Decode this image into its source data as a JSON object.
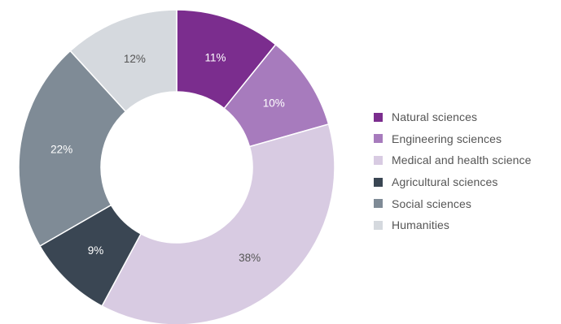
{
  "chart_data": {
    "type": "pie",
    "variant": "donut",
    "title": "",
    "legend_position": "right",
    "series": [
      {
        "name": "Natural sciences",
        "value": 11,
        "label": "11%",
        "color": "#7b2d8e",
        "label_color": "#ffffff"
      },
      {
        "name": "Engineering sciences",
        "value": 10,
        "label": "10%",
        "color": "#a77bbd",
        "label_color": "#ffffff"
      },
      {
        "name": "Medical and health science",
        "value": 38,
        "label": "38%",
        "color": "#d8cbe2",
        "label_color": "#555555"
      },
      {
        "name": "Agricultural sciences",
        "value": 9,
        "label": "9%",
        "color": "#3a4653",
        "label_color": "#ffffff"
      },
      {
        "name": "Social sciences",
        "value": 22,
        "label": "22%",
        "color": "#7f8b96",
        "label_color": "#ffffff"
      },
      {
        "name": "Humanities",
        "value": 12,
        "label": "12%",
        "color": "#d5d9de",
        "label_color": "#555555"
      }
    ]
  }
}
